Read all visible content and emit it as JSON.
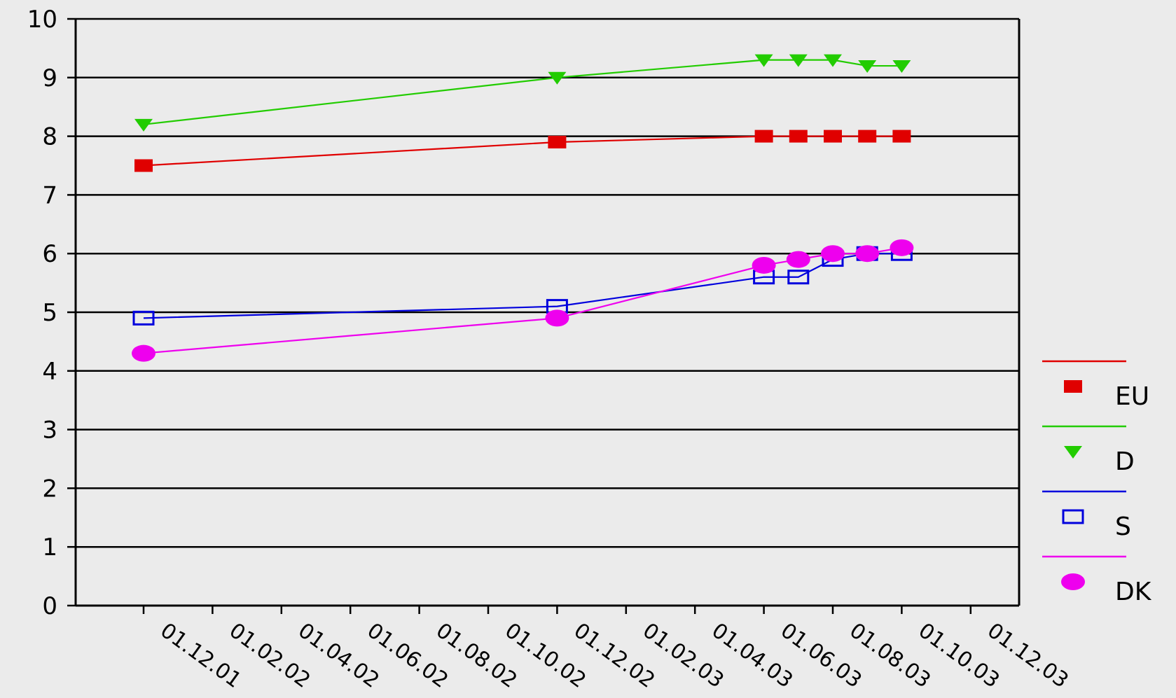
{
  "chart_data": {
    "type": "line",
    "title": "",
    "xlabel": "",
    "ylabel": "",
    "ylim": [
      0,
      10
    ],
    "yticks": [
      0,
      1,
      2,
      3,
      4,
      5,
      6,
      7,
      8,
      9,
      10
    ],
    "grid": "horizontal",
    "legend_position": "right",
    "categories": [
      "01.12.01",
      "01.02.02",
      "01.04.02",
      "01.06.02",
      "01.08.02",
      "01.10.02",
      "01.12.02",
      "01.02.03",
      "01.04.03",
      "01.06.03",
      "01.08.03",
      "01.10.03",
      "01.12.03"
    ],
    "series": [
      {
        "name": "EU",
        "color": "#e00000",
        "marker": "filled-square",
        "points": [
          {
            "x": "01.12.01",
            "y": 7.5
          },
          {
            "x": "01.12.02",
            "y": 7.9
          },
          {
            "x": "01.06.03",
            "y": 8.0
          },
          {
            "x": "01.07.03",
            "y": 8.0
          },
          {
            "x": "01.08.03",
            "y": 8.0
          },
          {
            "x": "01.09.03",
            "y": 8.0
          },
          {
            "x": "01.10.03",
            "y": 8.0
          }
        ]
      },
      {
        "name": "D",
        "color": "#22cc00",
        "marker": "filled-triangle-down",
        "points": [
          {
            "x": "01.12.01",
            "y": 8.2
          },
          {
            "x": "01.12.02",
            "y": 9.0
          },
          {
            "x": "01.06.03",
            "y": 9.3
          },
          {
            "x": "01.07.03",
            "y": 9.3
          },
          {
            "x": "01.08.03",
            "y": 9.3
          },
          {
            "x": "01.09.03",
            "y": 9.2
          },
          {
            "x": "01.10.03",
            "y": 9.2
          }
        ]
      },
      {
        "name": "S",
        "color": "#0000dd",
        "marker": "open-square",
        "points": [
          {
            "x": "01.12.01",
            "y": 4.9
          },
          {
            "x": "01.12.02",
            "y": 5.1
          },
          {
            "x": "01.06.03",
            "y": 5.6
          },
          {
            "x": "01.07.03",
            "y": 5.6
          },
          {
            "x": "01.08.03",
            "y": 5.9
          },
          {
            "x": "01.09.03",
            "y": 6.0
          },
          {
            "x": "01.10.03",
            "y": 6.0
          }
        ]
      },
      {
        "name": "DK",
        "color": "#ee00ee",
        "marker": "filled-circle",
        "points": [
          {
            "x": "01.12.01",
            "y": 4.3
          },
          {
            "x": "01.12.02",
            "y": 4.9
          },
          {
            "x": "01.06.03",
            "y": 5.8
          },
          {
            "x": "01.07.03",
            "y": 5.9
          },
          {
            "x": "01.08.03",
            "y": 6.0
          },
          {
            "x": "01.09.03",
            "y": 6.0
          },
          {
            "x": "01.10.03",
            "y": 6.1
          }
        ]
      }
    ]
  }
}
